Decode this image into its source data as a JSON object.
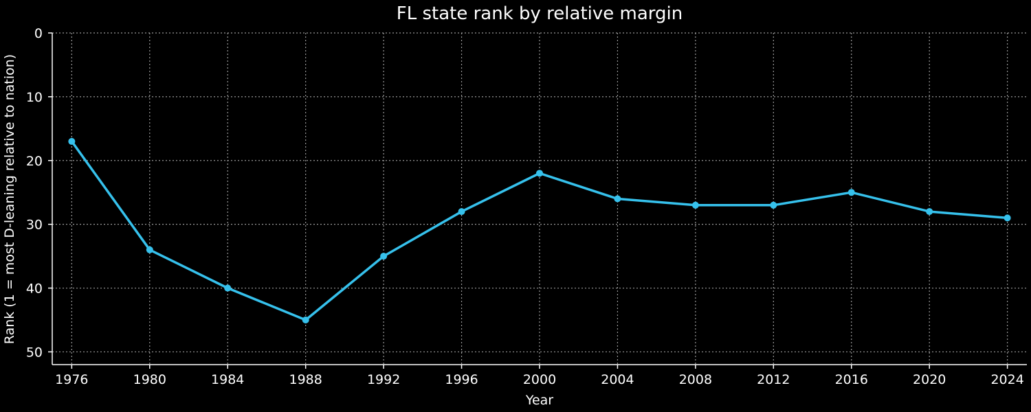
{
  "chart_data": {
    "type": "line",
    "title": "FL state rank by relative margin",
    "xlabel": "Year",
    "ylabel": "Rank (1 = most D-leaning relative to nation)",
    "x": [
      1976,
      1980,
      1984,
      1988,
      1992,
      1996,
      2000,
      2004,
      2008,
      2012,
      2016,
      2020,
      2024
    ],
    "series": [
      {
        "values": [
          17,
          34,
          40,
          45,
          35,
          28,
          22,
          26,
          27,
          27,
          25,
          28,
          29
        ],
        "color": "#36c1ec"
      }
    ],
    "xticks": [
      1976,
      1980,
      1984,
      1988,
      1992,
      1996,
      2000,
      2004,
      2008,
      2012,
      2016,
      2020,
      2024
    ],
    "yticks": [
      0,
      10,
      20,
      30,
      40,
      50
    ],
    "xlim": [
      1975,
      2025
    ],
    "ylim": [
      52,
      0
    ],
    "y_inverted": true,
    "grid": true,
    "background": "#000000"
  }
}
